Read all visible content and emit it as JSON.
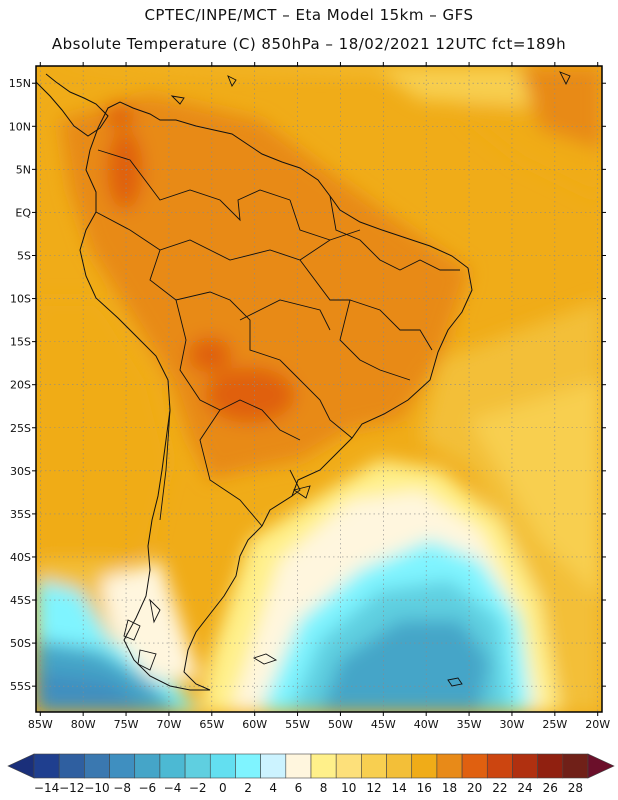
{
  "header": {
    "line1": "CPTEC/INPE/MCT –  Eta Model 15km – GFS",
    "line2": "Absolute Temperature (C) 850hPa – 18/02/2021 12UTC fct=189h"
  },
  "map": {
    "region": "South America",
    "variable": "Absolute Temperature (C) at 850hPa",
    "lat_labels": [
      "15N",
      "10N",
      "5N",
      "EQ",
      "5S",
      "10S",
      "15S",
      "20S",
      "25S",
      "30S",
      "35S",
      "40S",
      "45S",
      "50S",
      "55S"
    ],
    "lat_values": [
      15,
      10,
      5,
      0,
      -5,
      -10,
      -15,
      -20,
      -25,
      -30,
      -35,
      -40,
      -45,
      -50,
      -55
    ],
    "lon_labels": [
      "85W",
      "80W",
      "75W",
      "70W",
      "65W",
      "60W",
      "55W",
      "50W",
      "45W",
      "40W",
      "35W",
      "30W",
      "25W",
      "20W"
    ],
    "lon_values": [
      -85,
      -80,
      -75,
      -70,
      -65,
      -60,
      -55,
      -50,
      -45,
      -40,
      -35,
      -30,
      -25,
      -20
    ],
    "lon_range": [
      -85.5,
      -19.5
    ],
    "lat_range": [
      -58,
      17
    ]
  },
  "colorbar": {
    "labels": [
      "-14",
      "-12",
      "-10",
      "-8",
      "-6",
      "-4",
      "-2",
      "0",
      "2",
      "4",
      "6",
      "8",
      "10",
      "12",
      "14",
      "16",
      "18",
      "20",
      "22",
      "24",
      "26",
      "28"
    ],
    "colors": [
      "#1f3f8f",
      "#2f5fa0",
      "#3a78b0",
      "#3f8fc0",
      "#45a5c8",
      "#4cb9d3",
      "#5fcfe0",
      "#63dff0",
      "#7ff4ff",
      "#ccf3ff",
      "#fff6de",
      "#fff08a",
      "#fde07a",
      "#f8cf50",
      "#f3bf38",
      "#f0ac18",
      "#e88a18",
      "#e06010",
      "#cc4510",
      "#b03010",
      "#902010",
      "#702018"
    ],
    "low_color": "#1a2f7a",
    "high_color": "#6b0f2a"
  }
}
